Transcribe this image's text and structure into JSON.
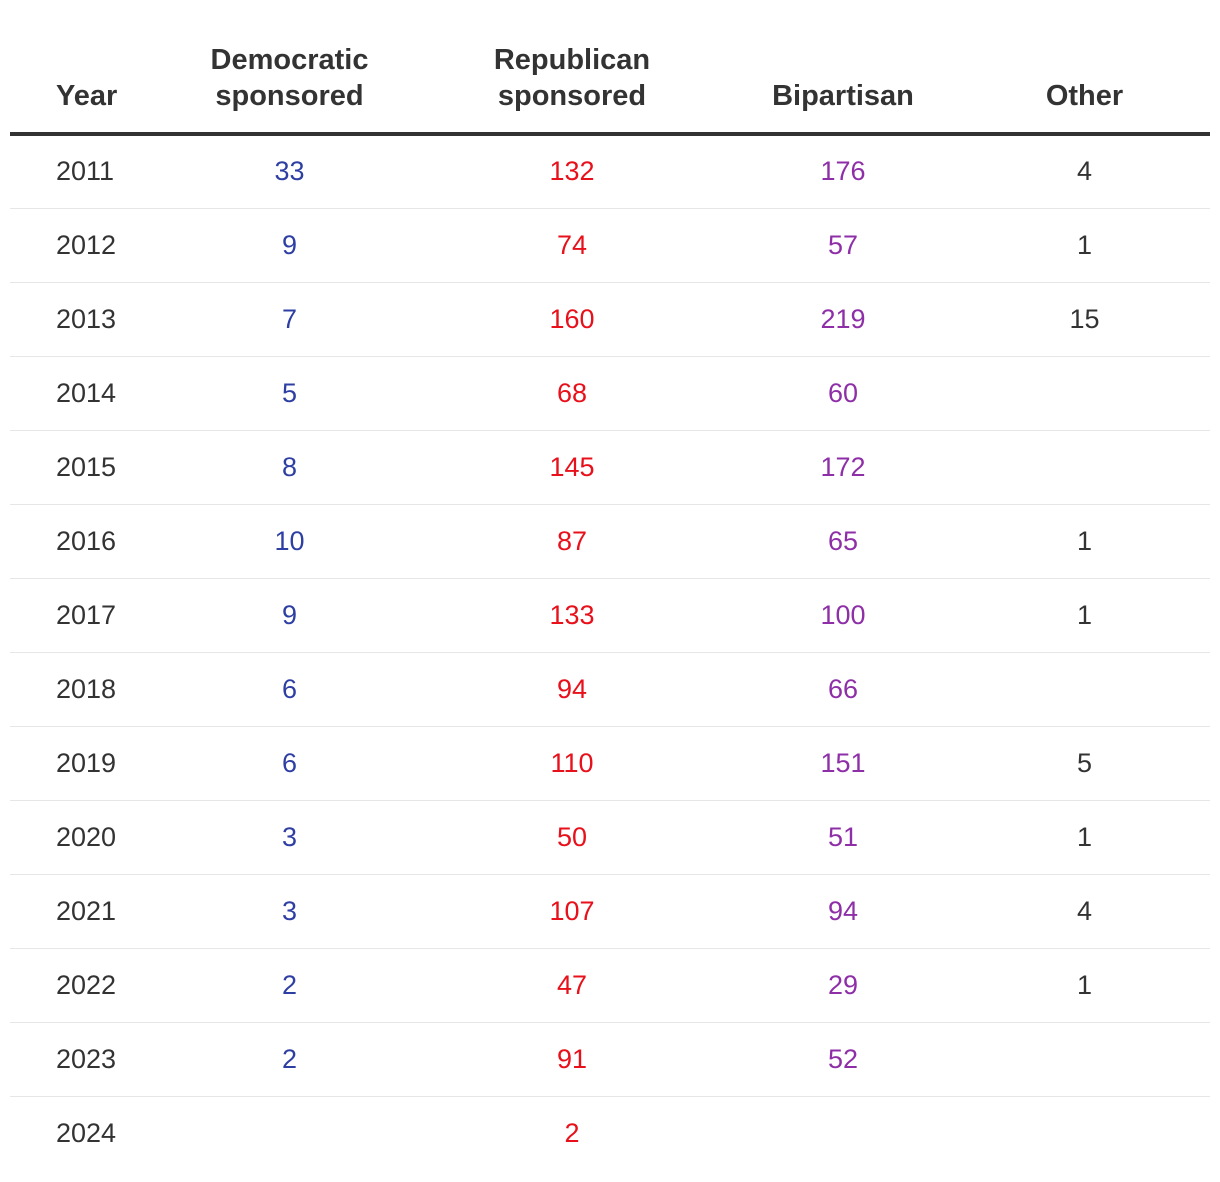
{
  "colors": {
    "democratic": "#2e3fa3",
    "republican": "#e8101a",
    "bipartisan": "#8e2fa8",
    "other": "#333333"
  },
  "headers": {
    "year": "Year",
    "democratic": [
      "Democratic",
      "sponsored"
    ],
    "republican": [
      "Republican",
      "sponsored"
    ],
    "bipartisan": "Bipartisan",
    "other": "Other"
  },
  "rows": [
    {
      "year": "2011",
      "democratic": "33",
      "republican": "132",
      "bipartisan": "176",
      "other": "4"
    },
    {
      "year": "2012",
      "democratic": "9",
      "republican": "74",
      "bipartisan": "57",
      "other": "1"
    },
    {
      "year": "2013",
      "democratic": "7",
      "republican": "160",
      "bipartisan": "219",
      "other": "15"
    },
    {
      "year": "2014",
      "democratic": "5",
      "republican": "68",
      "bipartisan": "60",
      "other": ""
    },
    {
      "year": "2015",
      "democratic": "8",
      "republican": "145",
      "bipartisan": "172",
      "other": ""
    },
    {
      "year": "2016",
      "democratic": "10",
      "republican": "87",
      "bipartisan": "65",
      "other": "1"
    },
    {
      "year": "2017",
      "democratic": "9",
      "republican": "133",
      "bipartisan": "100",
      "other": "1"
    },
    {
      "year": "2018",
      "democratic": "6",
      "republican": "94",
      "bipartisan": "66",
      "other": ""
    },
    {
      "year": "2019",
      "democratic": "6",
      "republican": "110",
      "bipartisan": "151",
      "other": "5"
    },
    {
      "year": "2020",
      "democratic": "3",
      "republican": "50",
      "bipartisan": "51",
      "other": "1"
    },
    {
      "year": "2021",
      "democratic": "3",
      "republican": "107",
      "bipartisan": "94",
      "other": "4"
    },
    {
      "year": "2022",
      "democratic": "2",
      "republican": "47",
      "bipartisan": "29",
      "other": "1"
    },
    {
      "year": "2023",
      "democratic": "2",
      "republican": "91",
      "bipartisan": "52",
      "other": ""
    },
    {
      "year": "2024",
      "democratic": "",
      "republican": "2",
      "bipartisan": "",
      "other": ""
    }
  ]
}
